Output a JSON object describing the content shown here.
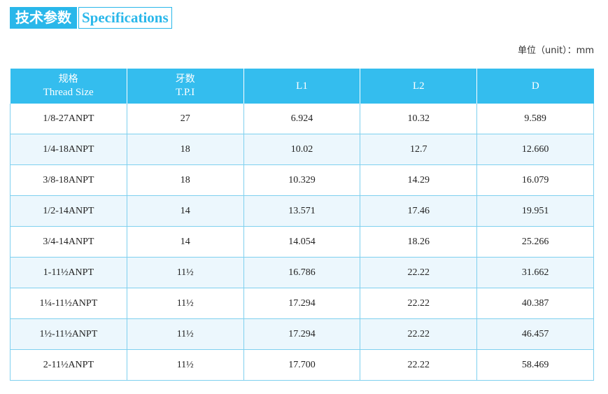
{
  "title": {
    "cn": "技术参数",
    "en": "Specifications"
  },
  "unit_label": "单位（unit）：mm",
  "table": {
    "headers": [
      {
        "cn": "规格",
        "en": "Thread Size"
      },
      {
        "cn": "牙数",
        "en": "T.P.I"
      },
      {
        "cn": "",
        "en": "L1"
      },
      {
        "cn": "",
        "en": "L2"
      },
      {
        "cn": "",
        "en": "D"
      }
    ],
    "rows": [
      [
        "1/8-27ANPT",
        "27",
        "6.924",
        "10.32",
        "9.589"
      ],
      [
        "1/4-18ANPT",
        "18",
        "10.02",
        "12.7",
        "12.660"
      ],
      [
        "3/8-18ANPT",
        "18",
        "10.329",
        "14.29",
        "16.079"
      ],
      [
        "1/2-14ANPT",
        "14",
        "13.571",
        "17.46",
        "19.951"
      ],
      [
        "3/4-14ANPT",
        "14",
        "14.054",
        "18.26",
        "25.266"
      ],
      [
        "1-11½ANPT",
        "11½",
        "16.786",
        "22.22",
        "31.662"
      ],
      [
        "1¼-11½ANPT",
        "11½",
        "17.294",
        "22.22",
        "40.387"
      ],
      [
        "1½-11½ANPT",
        "11½",
        "17.294",
        "22.22",
        "46.457"
      ],
      [
        "2-11½ANPT",
        "11½",
        "17.700",
        "22.22",
        "58.469"
      ]
    ]
  },
  "colors": {
    "accent": "#34bdee",
    "row_alt": "#ecf7fd",
    "grid": "#7fd0ef"
  }
}
